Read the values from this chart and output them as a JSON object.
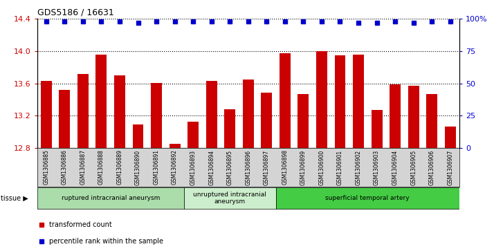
{
  "title": "GDS5186 / 16631",
  "samples": [
    "GSM1306885",
    "GSM1306886",
    "GSM1306887",
    "GSM1306888",
    "GSM1306889",
    "GSM1306890",
    "GSM1306891",
    "GSM1306892",
    "GSM1306893",
    "GSM1306894",
    "GSM1306895",
    "GSM1306896",
    "GSM1306897",
    "GSM1306898",
    "GSM1306899",
    "GSM1306900",
    "GSM1306901",
    "GSM1306902",
    "GSM1306903",
    "GSM1306904",
    "GSM1306905",
    "GSM1306906",
    "GSM1306907"
  ],
  "bar_values": [
    13.63,
    13.52,
    13.72,
    13.96,
    13.7,
    13.09,
    13.61,
    12.85,
    13.13,
    13.63,
    13.28,
    13.65,
    13.49,
    13.97,
    13.47,
    14.0,
    13.95,
    13.96,
    13.27,
    13.59,
    13.57,
    13.47,
    13.07
  ],
  "percentile_values": [
    98,
    98,
    98,
    98,
    98,
    97,
    98,
    98,
    98,
    98,
    98,
    98,
    98,
    98,
    98,
    98,
    98,
    97,
    97,
    98,
    97,
    98,
    98
  ],
  "ylim_left": [
    12.8,
    14.4
  ],
  "ylim_right": [
    0,
    100
  ],
  "yticks_left": [
    12.8,
    13.2,
    13.6,
    14.0,
    14.4
  ],
  "yticks_right_labels": [
    "0",
    "25",
    "50",
    "75",
    "100%"
  ],
  "yticks_right_vals": [
    0,
    25,
    50,
    75,
    100
  ],
  "bar_color": "#cc0000",
  "dot_color": "#0000cc",
  "tissue_groups": [
    {
      "label": "ruptured intracranial aneurysm",
      "start": 0,
      "end": 8,
      "color": "#aaddaa"
    },
    {
      "label": "unruptured intracranial\naneurysm",
      "start": 8,
      "end": 13,
      "color": "#cceecc"
    },
    {
      "label": "superficial temporal artery",
      "start": 13,
      "end": 23,
      "color": "#44cc44"
    }
  ],
  "tissue_label": "tissue",
  "legend_bar_label": "transformed count",
  "legend_dot_label": "percentile rank within the sample",
  "plot_bg_color": "#ffffff"
}
